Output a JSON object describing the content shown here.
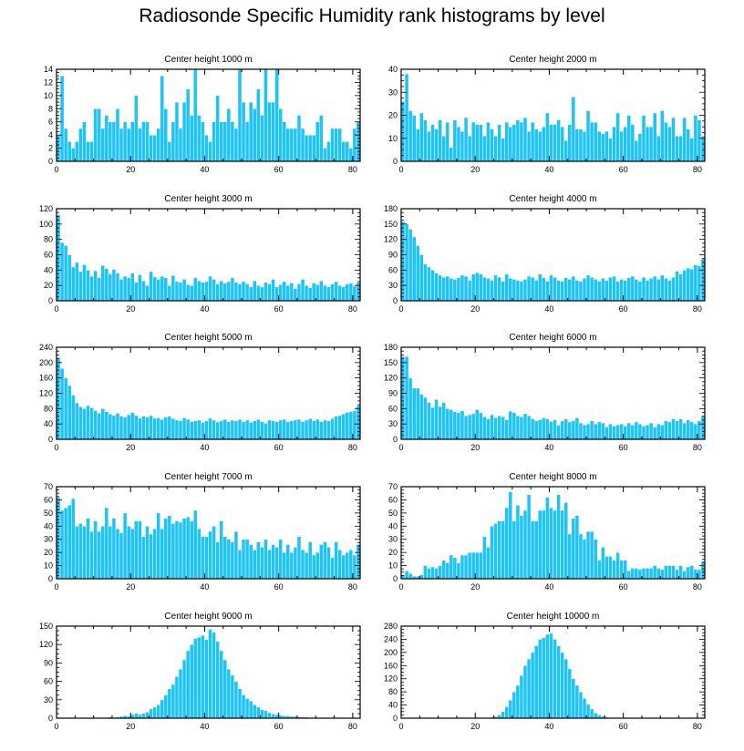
{
  "title": "Radiosonde Specific Humidity rank histograms by level",
  "colors": {
    "bar": "#1ec3f7",
    "bar_edge": "#ffffff",
    "axis": "#000000"
  },
  "chart_data": [
    {
      "type": "bar",
      "title": "Center height 1000 m",
      "xlabel": "",
      "ylabel": "",
      "xlim": [
        0,
        82
      ],
      "ylim": [
        0,
        14
      ],
      "xticks": [
        0,
        20,
        40,
        60,
        80
      ],
      "yticks": [
        0,
        2,
        4,
        6,
        8,
        10,
        12,
        14
      ],
      "grid": false,
      "values": [
        4,
        13,
        5,
        3,
        2,
        3,
        5,
        6,
        3,
        3,
        8,
        8,
        5,
        7,
        6,
        6,
        8,
        5,
        6,
        5,
        6,
        10,
        5,
        6,
        6,
        4,
        4,
        5,
        13,
        8,
        3,
        6,
        9,
        5,
        9,
        11,
        7,
        14,
        7,
        6,
        4,
        3,
        6,
        10,
        6,
        6,
        8,
        6,
        5,
        14,
        9,
        6,
        9,
        8,
        11,
        7,
        14,
        9,
        9,
        14,
        8,
        6,
        5,
        5,
        5,
        7,
        5,
        4,
        4,
        4,
        6,
        7,
        2,
        3,
        5,
        5,
        5,
        3,
        3,
        2,
        5,
        6
      ]
    },
    {
      "type": "bar",
      "title": "Center height 2000 m",
      "xlabel": "",
      "ylabel": "",
      "xlim": [
        0,
        82
      ],
      "ylim": [
        0,
        40
      ],
      "xticks": [
        0,
        20,
        40,
        60,
        80
      ],
      "yticks": [
        0,
        10,
        20,
        30,
        40
      ],
      "grid": false,
      "values": [
        26,
        38,
        22,
        20,
        14,
        21,
        18,
        13,
        16,
        14,
        18,
        11,
        17,
        6,
        18,
        15,
        13,
        19,
        11,
        17,
        16,
        16,
        11,
        17,
        14,
        11,
        16,
        10,
        17,
        15,
        16,
        18,
        17,
        19,
        13,
        17,
        14,
        13,
        15,
        21,
        16,
        16,
        18,
        15,
        9,
        16,
        28,
        14,
        14,
        13,
        22,
        17,
        17,
        13,
        12,
        13,
        10,
        15,
        21,
        13,
        15,
        20,
        16,
        9,
        12,
        20,
        15,
        15,
        21,
        11,
        22,
        17,
        15,
        19,
        11,
        11,
        19,
        14,
        10,
        20,
        18,
        11
      ]
    },
    {
      "type": "bar",
      "title": "Center height 3000 m",
      "xlabel": "",
      "ylabel": "",
      "xlim": [
        0,
        82
      ],
      "ylim": [
        0,
        120
      ],
      "xticks": [
        0,
        20,
        40,
        60,
        80
      ],
      "yticks": [
        0,
        20,
        40,
        60,
        80,
        100,
        120
      ],
      "grid": false,
      "values": [
        112,
        76,
        72,
        60,
        44,
        50,
        38,
        47,
        40,
        32,
        39,
        30,
        46,
        42,
        35,
        41,
        36,
        28,
        32,
        30,
        36,
        24,
        34,
        26,
        20,
        38,
        31,
        28,
        32,
        30,
        20,
        33,
        25,
        24,
        28,
        21,
        20,
        30,
        26,
        24,
        25,
        32,
        28,
        22,
        26,
        23,
        25,
        30,
        24,
        22,
        25,
        22,
        18,
        26,
        20,
        18,
        24,
        22,
        28,
        18,
        21,
        25,
        20,
        23,
        16,
        22,
        28,
        20,
        17,
        23,
        21,
        26,
        20,
        18,
        22,
        25,
        20,
        18,
        22,
        23,
        19,
        24
      ]
    },
    {
      "type": "bar",
      "title": "Center height 4000 m",
      "xlabel": "",
      "ylabel": "",
      "xlim": [
        0,
        82
      ],
      "ylim": [
        0,
        180
      ],
      "xticks": [
        0,
        20,
        40,
        60,
        80
      ],
      "yticks": [
        0,
        30,
        60,
        90,
        120,
        150,
        180
      ],
      "grid": false,
      "values": [
        155,
        150,
        140,
        125,
        108,
        90,
        72,
        66,
        60,
        54,
        50,
        46,
        48,
        44,
        42,
        45,
        50,
        48,
        40,
        52,
        55,
        52,
        46,
        44,
        40,
        50,
        46,
        38,
        52,
        44,
        42,
        40,
        38,
        42,
        48,
        46,
        40,
        52,
        45,
        38,
        50,
        46,
        40,
        38,
        45,
        42,
        48,
        40,
        38,
        44,
        50,
        46,
        42,
        38,
        44,
        40,
        46,
        48,
        38,
        42,
        40,
        45,
        48,
        42,
        38,
        46,
        40,
        44,
        48,
        42,
        50,
        44,
        40,
        46,
        58,
        52,
        60,
        64,
        62,
        70,
        68,
        82
      ]
    },
    {
      "type": "bar",
      "title": "Center height 5000 m",
      "xlabel": "",
      "ylabel": "",
      "xlim": [
        0,
        82
      ],
      "ylim": [
        0,
        240
      ],
      "xticks": [
        0,
        20,
        40,
        60,
        80
      ],
      "yticks": [
        0,
        40,
        80,
        120,
        160,
        200,
        240
      ],
      "grid": false,
      "values": [
        212,
        185,
        160,
        140,
        115,
        95,
        85,
        80,
        88,
        82,
        75,
        68,
        80,
        72,
        66,
        62,
        68,
        60,
        58,
        64,
        70,
        62,
        55,
        60,
        58,
        62,
        55,
        56,
        52,
        58,
        60,
        54,
        50,
        48,
        56,
        52,
        46,
        48,
        50,
        44,
        48,
        55,
        50,
        45,
        48,
        52,
        46,
        50,
        48,
        52,
        46,
        50,
        44,
        48,
        52,
        46,
        42,
        50,
        48,
        46,
        50,
        52,
        46,
        48,
        50,
        52,
        46,
        50,
        54,
        48,
        52,
        46,
        50,
        48,
        54,
        60,
        62,
        66,
        70,
        72,
        75,
        88
      ]
    },
    {
      "type": "bar",
      "title": "Center height 6000 m",
      "xlabel": "",
      "ylabel": "",
      "xlim": [
        0,
        82
      ],
      "ylim": [
        0,
        180
      ],
      "xticks": [
        0,
        20,
        40,
        60,
        80
      ],
      "yticks": [
        0,
        30,
        60,
        90,
        120,
        150,
        180
      ],
      "grid": false,
      "values": [
        162,
        162,
        120,
        100,
        100,
        88,
        82,
        72,
        62,
        78,
        64,
        72,
        60,
        58,
        54,
        52,
        56,
        46,
        48,
        50,
        58,
        52,
        44,
        40,
        48,
        42,
        46,
        44,
        38,
        55,
        52,
        46,
        44,
        50,
        46,
        40,
        36,
        38,
        42,
        40,
        35,
        38,
        28,
        36,
        40,
        34,
        36,
        42,
        32,
        28,
        30,
        36,
        30,
        34,
        32,
        24,
        30,
        26,
        28,
        30,
        26,
        32,
        28,
        34,
        30,
        26,
        28,
        32,
        24,
        30,
        28,
        36,
        34,
        40,
        36,
        40,
        32,
        38,
        34,
        30,
        36,
        46
      ]
    },
    {
      "type": "bar",
      "title": "Center height 7000 m",
      "xlabel": "",
      "ylabel": "",
      "xlim": [
        0,
        82
      ],
      "ylim": [
        0,
        70
      ],
      "xticks": [
        0,
        20,
        40,
        60,
        80
      ],
      "yticks": [
        0,
        10,
        20,
        30,
        40,
        50,
        60,
        70
      ],
      "grid": false,
      "values": [
        62,
        52,
        54,
        56,
        61,
        40,
        42,
        40,
        46,
        36,
        44,
        36,
        40,
        54,
        40,
        46,
        38,
        35,
        50,
        40,
        38,
        44,
        44,
        32,
        40,
        34,
        38,
        50,
        38,
        46,
        48,
        42,
        44,
        43,
        46,
        47,
        44,
        52,
        38,
        32,
        32,
        36,
        40,
        28,
        44,
        32,
        30,
        28,
        36,
        22,
        30,
        30,
        26,
        22,
        28,
        24,
        30,
        22,
        26,
        24,
        30,
        20,
        26,
        20,
        24,
        32,
        22,
        20,
        28,
        18,
        20,
        26,
        28,
        24,
        16,
        28,
        22,
        18,
        20,
        22,
        18,
        26
      ]
    },
    {
      "type": "bar",
      "title": "Center height 8000 m",
      "xlabel": "",
      "ylabel": "",
      "xlim": [
        0,
        82
      ],
      "ylim": [
        0,
        70
      ],
      "xticks": [
        0,
        20,
        40,
        60,
        80
      ],
      "yticks": [
        0,
        10,
        20,
        30,
        40,
        50,
        60,
        70
      ],
      "grid": false,
      "values": [
        3,
        6,
        4,
        2,
        2,
        3,
        10,
        8,
        9,
        8,
        10,
        14,
        12,
        18,
        16,
        12,
        18,
        18,
        20,
        20,
        20,
        20,
        32,
        24,
        40,
        42,
        44,
        44,
        54,
        66,
        44,
        56,
        48,
        52,
        64,
        44,
        44,
        52,
        52,
        62,
        54,
        52,
        64,
        52,
        58,
        34,
        46,
        48,
        34,
        30,
        36,
        36,
        30,
        14,
        24,
        17,
        17,
        14,
        20,
        14,
        14,
        6,
        8,
        8,
        7,
        8,
        8,
        8,
        10,
        8,
        7,
        10,
        10,
        10,
        7,
        10,
        6,
        9,
        10,
        7,
        7,
        13
      ]
    },
    {
      "type": "bar",
      "title": "Center height 9000 m",
      "xlabel": "",
      "ylabel": "",
      "xlim": [
        0,
        82
      ],
      "ylim": [
        0,
        150
      ],
      "xticks": [
        0,
        20,
        40,
        60,
        80
      ],
      "yticks": [
        0,
        30,
        60,
        90,
        120,
        150
      ],
      "grid": false,
      "values": [
        0,
        0,
        0,
        0,
        0,
        0,
        0,
        0,
        0,
        0,
        0,
        0,
        1,
        1,
        2,
        1,
        2,
        3,
        4,
        3,
        6,
        8,
        6,
        8,
        10,
        15,
        18,
        22,
        30,
        38,
        48,
        55,
        68,
        80,
        95,
        110,
        120,
        130,
        132,
        135,
        128,
        145,
        140,
        125,
        110,
        95,
        80,
        70,
        60,
        48,
        38,
        32,
        28,
        22,
        18,
        14,
        12,
        9,
        7,
        6,
        5,
        4,
        4,
        3,
        3,
        2,
        2,
        2,
        1,
        1,
        1,
        1,
        1,
        1,
        0,
        0,
        0,
        0,
        1,
        0,
        0,
        0
      ]
    },
    {
      "type": "bar",
      "title": "Center height 10000 m",
      "xlabel": "",
      "ylabel": "",
      "xlim": [
        0,
        82
      ],
      "ylim": [
        0,
        280
      ],
      "xticks": [
        0,
        20,
        40,
        60,
        80
      ],
      "yticks": [
        0,
        40,
        80,
        120,
        160,
        200,
        240,
        280
      ],
      "grid": false,
      "values": [
        0,
        0,
        0,
        0,
        0,
        0,
        0,
        0,
        0,
        0,
        0,
        0,
        0,
        0,
        0,
        0,
        0,
        0,
        0,
        0,
        0,
        0,
        1,
        2,
        3,
        5,
        10,
        20,
        35,
        55,
        80,
        100,
        130,
        160,
        180,
        200,
        220,
        240,
        245,
        255,
        258,
        240,
        220,
        200,
        180,
        150,
        120,
        100,
        80,
        60,
        42,
        28,
        16,
        10,
        6,
        3,
        2,
        1,
        1,
        0,
        0,
        0,
        0,
        0,
        0,
        0,
        0,
        0,
        0,
        0,
        0,
        0,
        0,
        0,
        0,
        0,
        0,
        0,
        0,
        0,
        0,
        0
      ]
    }
  ]
}
